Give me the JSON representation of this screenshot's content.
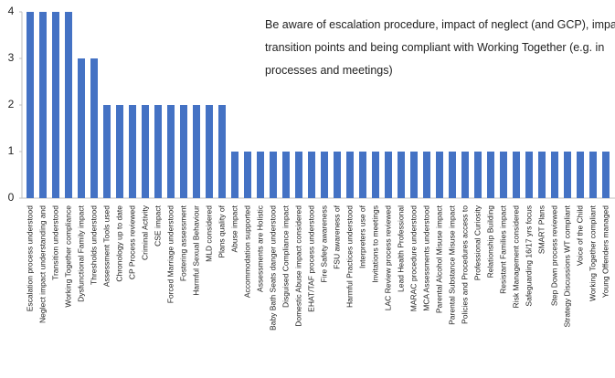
{
  "chart_data": {
    "type": "bar",
    "annotation": [
      "Be aware of escalation procedure, impact of neglect (and GCP), impa",
      "transition points and being compliant with Working Together  (e.g. in",
      "processes and meetings)"
    ],
    "categories": [
      "Escalation process understood",
      "Neglect impact understanding and",
      "Transition understood",
      "Working Together compliance",
      "Dysfunctional Family impact",
      "Thresholds understood",
      "Assessment Tools used",
      "Chronology up to date",
      "CP Process reviewed",
      "Criminal Activity",
      "CSE impact",
      "Forced Marriage understood",
      "Fostering assessment",
      "Harmful Sexual Behaviour",
      "MLD considered",
      "Plans quality of",
      "Abuse impact",
      "Accommodation supported",
      "Assessments are Holistic",
      "Baby Bath Seats danger understood",
      "Disguised Compliance impact",
      "Domestic Abuse impact considered",
      "EHAT/TAF process understood",
      "Fire Safety awareness",
      "FSU awareness of",
      "Harmful Practices understood",
      "Interpreters use of",
      "Invitations to meetings",
      "LAC Review process reviewed",
      "Lead Health Professional",
      "MARAC procedure understood",
      "MCA Assessments understood",
      "Parental Alcohol Misuse impact",
      "Parental Substance Misuse impact",
      "Policies and Procedures access to",
      "Professional Curiosity",
      "Relationship Building",
      "Resistant Families impact",
      "Risk Management considered",
      "Safeguarding 16/17 yrs focus",
      "SMART Plans",
      "Step Down process reviewed",
      "Strategy Discussions WT compliant",
      "Voice of the Child",
      "Working Together compliant",
      "Young Offenders managed"
    ],
    "values": [
      4,
      4,
      4,
      4,
      3,
      3,
      2,
      2,
      2,
      2,
      2,
      2,
      2,
      2,
      2,
      2,
      1,
      1,
      1,
      1,
      1,
      1,
      1,
      1,
      1,
      1,
      1,
      1,
      1,
      1,
      1,
      1,
      1,
      1,
      1,
      1,
      1,
      1,
      1,
      1,
      1,
      1,
      1,
      1,
      1,
      1
    ],
    "color": "#4472c4",
    "ylim": [
      0,
      4
    ],
    "yticks": [
      0,
      1,
      2,
      3,
      4
    ],
    "grid": false
  }
}
